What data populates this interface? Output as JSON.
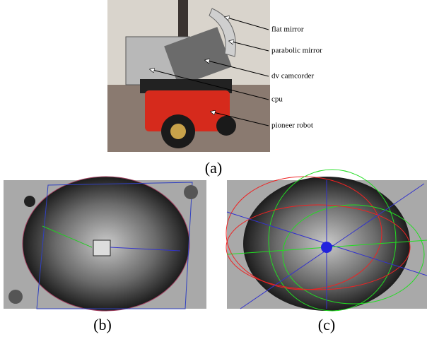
{
  "figure": {
    "annotations": [
      "flat mirror",
      "parabolic mirror",
      "dv camcorder",
      "cpu",
      "pioneer robot"
    ],
    "captions": [
      "(a)",
      "(b)",
      "(c)"
    ]
  }
}
